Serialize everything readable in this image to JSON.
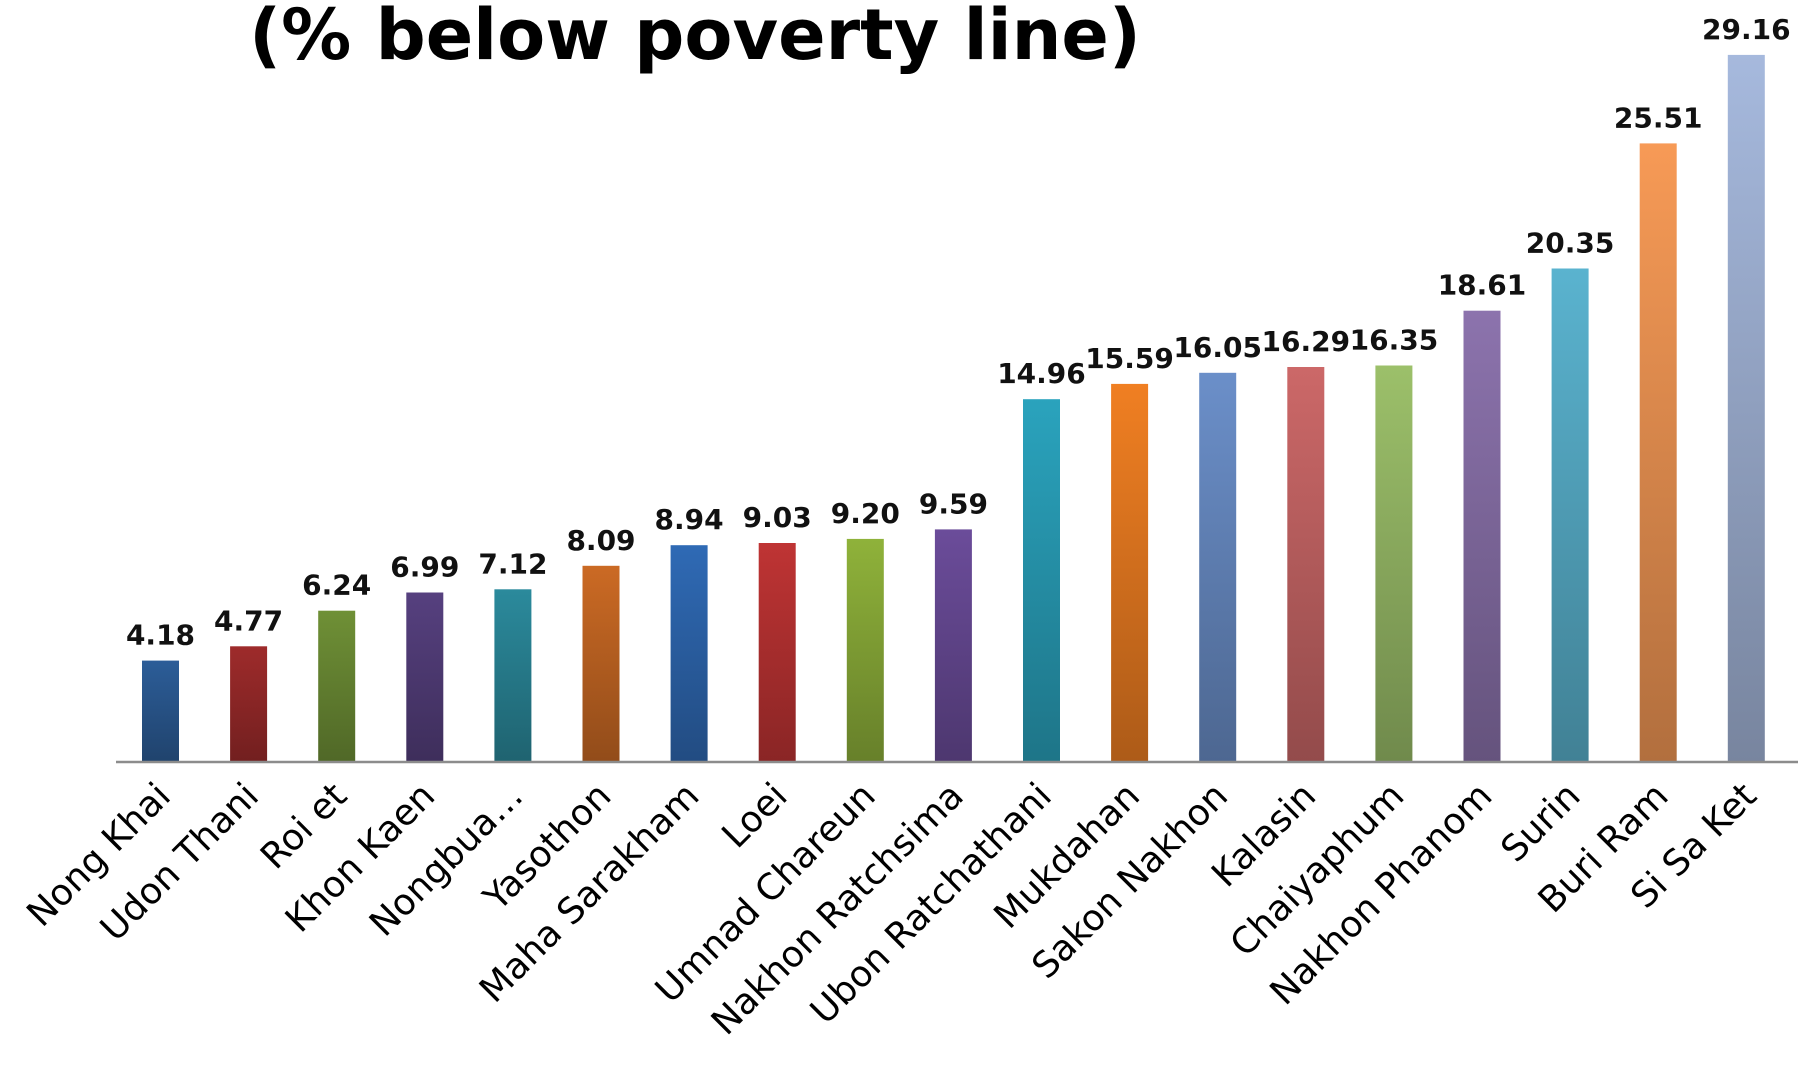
{
  "chart_data": {
    "type": "bar",
    "title": "(% below poverty line)",
    "xlabel": "",
    "ylabel": "",
    "ylim": [
      0,
      30
    ],
    "grid": false,
    "legend": "none",
    "categories": [
      "Nong Khai",
      "Udon Thani",
      "Roi et",
      "Khon Kaen",
      "Nongbua…",
      "Yasothon",
      "Maha Sarakham",
      "Loei",
      "Umnad Chareun",
      "Nakhon Ratchsima",
      "Ubon Ratchathani",
      "Mukdahan",
      "Sakon Nakhon",
      "Kalasin",
      "Chaiyaphum",
      "Nakhon Phanom",
      "Surin",
      "Buri Ram",
      "Si Sa Ket"
    ],
    "values": [
      4.18,
      4.77,
      6.24,
      6.99,
      7.12,
      8.09,
      8.94,
      9.03,
      9.2,
      9.59,
      14.96,
      15.59,
      16.05,
      16.29,
      16.35,
      18.61,
      20.35,
      25.51,
      29.16
    ],
    "value_labels": [
      "4.18",
      "4.77",
      "6.24",
      "6.99",
      "7.12",
      "8.09",
      "8.94",
      "9.03",
      "9.20",
      "9.59",
      "14.96",
      "15.59",
      "16.05",
      "16.29",
      "16.35",
      "18.61",
      "20.35",
      "25.51",
      "29.16"
    ],
    "colors": [
      "#2c5d98",
      "#9e2b2b",
      "#6f9036",
      "#56407f",
      "#2b8a9c",
      "#cb6a24",
      "#2f6ab5",
      "#bf3434",
      "#8fb23a",
      "#6b4c9a",
      "#2aa3bd",
      "#f07f22",
      "#6b8fc9",
      "#cc6868",
      "#9cc06a",
      "#8c73ad",
      "#5ab3cf",
      "#f79a56",
      "#a6b9dd"
    ]
  }
}
